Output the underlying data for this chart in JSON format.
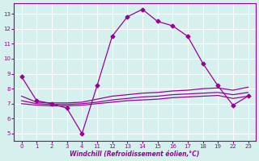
{
  "background_color": "#d6f0ee",
  "grid_color": "#ffffff",
  "line_color": "#990099",
  "xlabel": "Windchill (Refroidissement éolien,°C)",
  "xlabels": [
    "0",
    "1",
    "2",
    "3",
    "4",
    "11",
    "12",
    "13",
    "14",
    "15",
    "16",
    "17",
    "18",
    "19",
    "22",
    "23"
  ],
  "ylim": [
    4.5,
    13.7
  ],
  "yticks": [
    5,
    6,
    7,
    8,
    9,
    10,
    11,
    12,
    13
  ],
  "series": [
    {
      "y": [
        8.8,
        7.2,
        7.0,
        6.7,
        5.0,
        8.2,
        11.5,
        12.8,
        13.3,
        12.5,
        12.2,
        11.5,
        9.7,
        8.2,
        6.9,
        7.5
      ],
      "marker": "D",
      "markersize": 2.5,
      "linewidth": 0.9
    },
    {
      "y": [
        7.5,
        7.1,
        7.05,
        7.05,
        7.1,
        7.3,
        7.5,
        7.6,
        7.7,
        7.75,
        7.85,
        7.9,
        8.0,
        8.05,
        7.9,
        8.1
      ],
      "marker": null,
      "markersize": 0,
      "linewidth": 0.9
    },
    {
      "y": [
        7.2,
        7.0,
        6.95,
        6.95,
        7.0,
        7.1,
        7.25,
        7.35,
        7.45,
        7.5,
        7.6,
        7.65,
        7.7,
        7.75,
        7.6,
        7.75
      ],
      "marker": null,
      "markersize": 0,
      "linewidth": 0.9
    },
    {
      "y": [
        7.0,
        6.9,
        6.85,
        6.85,
        6.9,
        7.0,
        7.1,
        7.2,
        7.25,
        7.3,
        7.4,
        7.45,
        7.5,
        7.55,
        7.35,
        7.5
      ],
      "marker": null,
      "markersize": 0,
      "linewidth": 0.9
    }
  ]
}
